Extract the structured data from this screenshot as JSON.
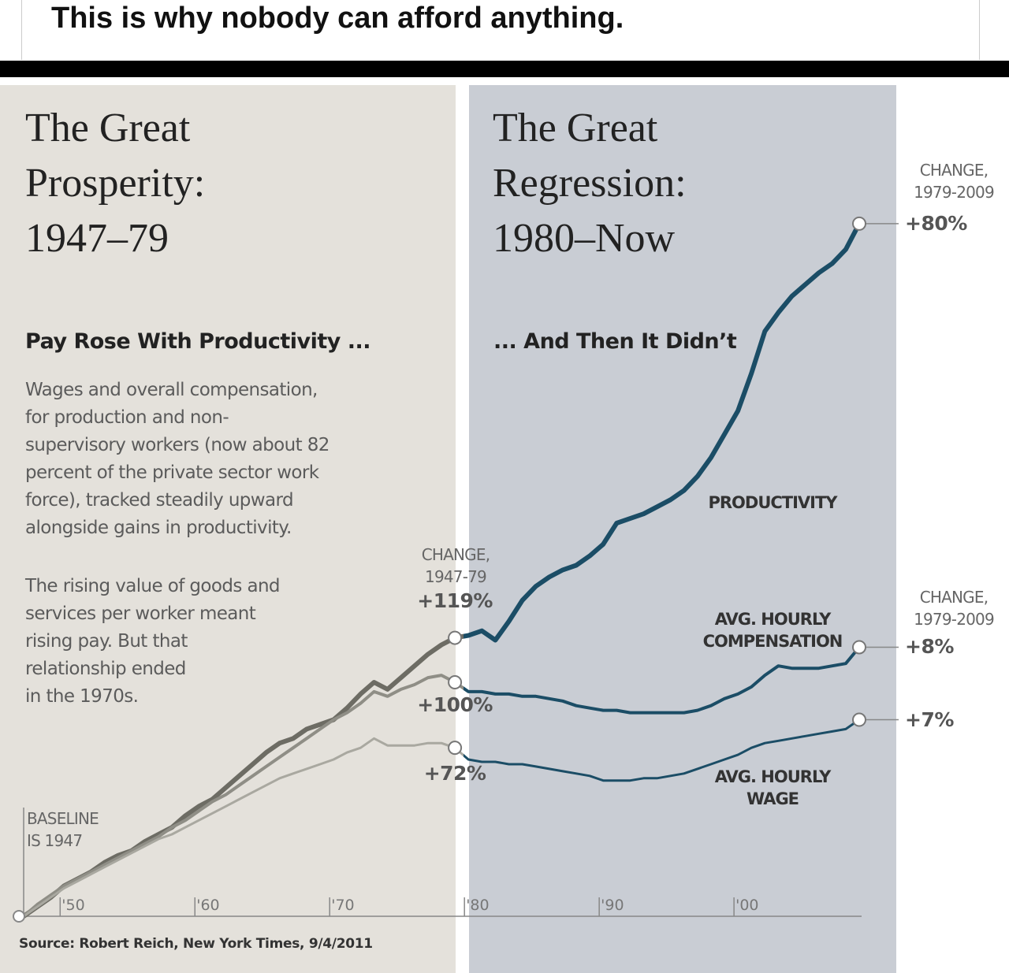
{
  "post_text": "This is why nobody can afford anything.",
  "chart_data": {
    "type": "line",
    "panels": [
      {
        "title": [
          "The Great",
          "Prosperity:",
          "1947–79"
        ],
        "subtitle": "Pay Rose With Productivity ...",
        "paragraphs": [
          [
            "Wages and overall compensation,",
            "for production and non-",
            "supervisory workers (now about 82",
            "percent of the private sector work",
            "force), tracked steadily upward",
            "alongside gains in productivity."
          ],
          [
            "The rising value of goods and",
            "services per worker meant",
            "rising pay. But that",
            "relationship ended",
            "in the 1970s."
          ]
        ]
      },
      {
        "title": [
          "The Great",
          "Regression:",
          "1980–Now"
        ],
        "subtitle": "... And Then It Didn’t"
      }
    ],
    "annotations": {
      "change_1947_79": "CHANGE, 1947-79",
      "change_1979_2009": [
        "CHANGE, 1979-2009",
        "CHANGE, 1979-2009"
      ],
      "baseline": "BASELINE IS 1947"
    },
    "source": "Source: Robert Reich, New York Times, 9/4/2011",
    "x": [
      1947,
      1948,
      1949,
      1950,
      1951,
      1952,
      1953,
      1954,
      1955,
      1956,
      1957,
      1958,
      1959,
      1960,
      1961,
      1962,
      1963,
      1964,
      1965,
      1966,
      1967,
      1968,
      1969,
      1970,
      1971,
      1972,
      1973,
      1974,
      1975,
      1976,
      1977,
      1978,
      1979,
      1980,
      1981,
      1982,
      1983,
      1984,
      1985,
      1986,
      1987,
      1988,
      1989,
      1990,
      1991,
      1992,
      1993,
      1994,
      1995,
      1996,
      1997,
      1998,
      1999,
      2000,
      2001,
      2002,
      2003,
      2004,
      2005,
      2006,
      2007,
      2008,
      2009
    ],
    "xlim": [
      1947,
      2009
    ],
    "xticks": [
      {
        "value": 1950,
        "label": "'50"
      },
      {
        "value": 1960,
        "label": "'60"
      },
      {
        "value": 1970,
        "label": "'70"
      },
      {
        "value": 1980,
        "label": "'80"
      },
      {
        "value": 1990,
        "label": "'90"
      },
      {
        "value": 2000,
        "label": "'00"
      }
    ],
    "ylim": [
      0,
      300
    ],
    "series": [
      {
        "name": "PRODUCTIVITY",
        "color": "#1b4d66",
        "early_color": "#6d6c64",
        "values": [
          0,
          4,
          8,
          13,
          16,
          19,
          23,
          26,
          28,
          32,
          35,
          38,
          43,
          47,
          50,
          55,
          60,
          65,
          70,
          74,
          76,
          80,
          82,
          84,
          89,
          95,
          100,
          97,
          102,
          107,
          112,
          116,
          119,
          120,
          122,
          118,
          126,
          135,
          141,
          145,
          148,
          150,
          154,
          159,
          168,
          170,
          172,
          175,
          178,
          182,
          188,
          196,
          206,
          216,
          232,
          250,
          258,
          265,
          270,
          275,
          279,
          285,
          296
        ],
        "change_labels": [
          "+119%",
          "+80%"
        ]
      },
      {
        "name": "AVG. HOURLY COMPENSATION",
        "color": "#1b4d66",
        "early_color": "#8f8e86",
        "values": [
          0,
          5,
          9,
          13,
          16,
          19,
          22,
          25,
          28,
          31,
          34,
          38,
          41,
          45,
          49,
          52,
          56,
          60,
          64,
          68,
          72,
          76,
          80,
          84,
          87,
          91,
          96,
          94,
          97,
          99,
          102,
          103,
          100,
          96,
          96,
          95,
          95,
          94,
          94,
          93,
          92,
          90,
          89,
          88,
          88,
          87,
          87,
          87,
          87,
          87,
          88,
          90,
          93,
          95,
          98,
          103,
          107,
          106,
          106,
          106,
          107,
          108,
          115
        ],
        "change_labels": [
          "+100%",
          "+8%"
        ]
      },
      {
        "name": "AVG. HOURLY WAGE",
        "color": "#1b4d66",
        "early_color": "#a9a8a0",
        "values": [
          0,
          4,
          8,
          12,
          15,
          18,
          21,
          24,
          27,
          30,
          33,
          35,
          38,
          41,
          44,
          47,
          50,
          53,
          56,
          59,
          61,
          63,
          65,
          67,
          70,
          72,
          76,
          73,
          73,
          73,
          74,
          74,
          72,
          67,
          66,
          66,
          65,
          65,
          64,
          63,
          62,
          61,
          60,
          58,
          58,
          58,
          59,
          59,
          60,
          61,
          63,
          65,
          67,
          69,
          72,
          74,
          75,
          76,
          77,
          78,
          79,
          80,
          84
        ],
        "change_labels": [
          "+72%",
          "+7%"
        ]
      }
    ]
  }
}
